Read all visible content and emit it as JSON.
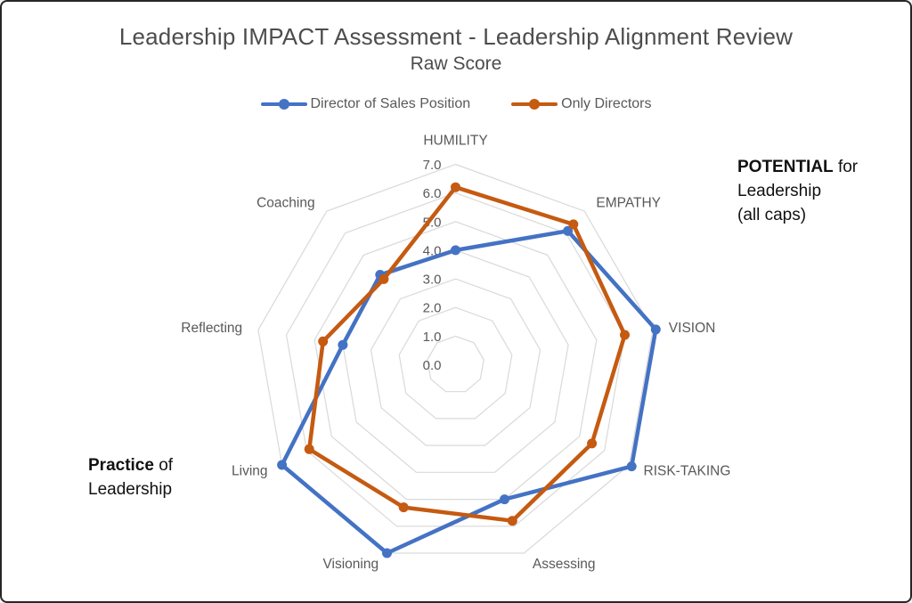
{
  "window": {
    "border_color": "#262626",
    "background": "#ffffff"
  },
  "chart_data": {
    "type": "radar",
    "title": "Leadership IMPACT Assessment - Leadership Alignment Review",
    "subtitle": "Raw Score",
    "categories": [
      "HUMILITY",
      "EMPATHY",
      "VISION",
      "RISK-TAKING",
      "Assessing",
      "Visioning",
      "Living",
      "Reflecting",
      "Coaching"
    ],
    "series": [
      {
        "name": "Director of Sales Position",
        "color": "#4472C4",
        "values": [
          4.0,
          6.1,
          7.1,
          7.1,
          5.0,
          7.0,
          7.0,
          4.0,
          4.1
        ]
      },
      {
        "name": "Only Directors",
        "color": "#C55A11",
        "values": [
          6.2,
          6.4,
          6.0,
          5.5,
          5.8,
          5.3,
          5.9,
          4.7,
          3.9
        ]
      }
    ],
    "axis": {
      "min": 0.0,
      "max": 7.0,
      "step": 1.0,
      "tick_labels": [
        "0.0",
        "1.0",
        "2.0",
        "3.0",
        "4.0",
        "5.0",
        "6.0",
        "7.0"
      ]
    },
    "grid": true,
    "grid_color": "#D9D9D9",
    "label_color": "#595959",
    "legend_position": "top",
    "annotations": [
      {
        "bold": "POTENTIAL",
        "rest": " for",
        "lines": [
          "Leadership",
          "(all caps)"
        ],
        "position": "right"
      },
      {
        "bold": "Practice",
        "rest": " of",
        "lines": [
          "Leadership"
        ],
        "position": "left"
      }
    ]
  }
}
